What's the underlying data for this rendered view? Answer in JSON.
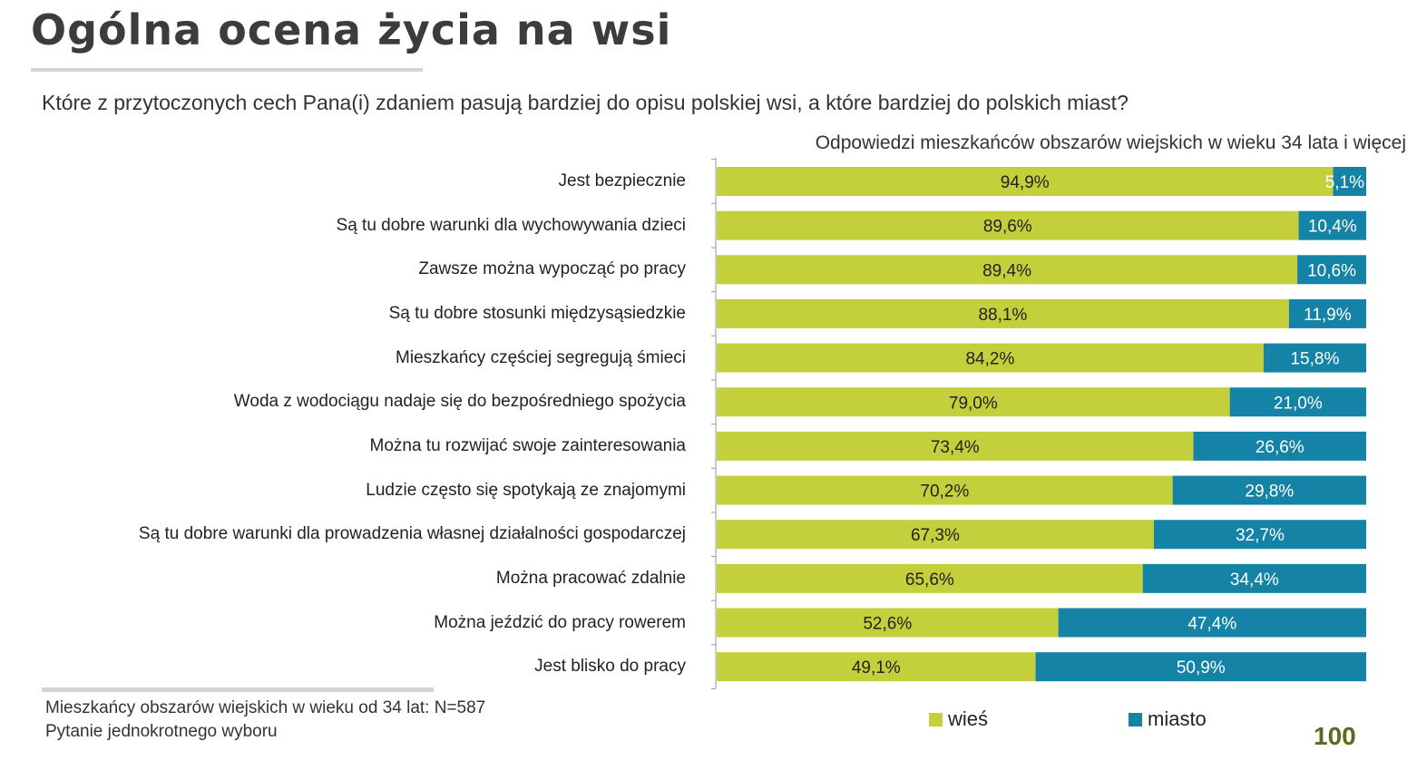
{
  "title": "Ogólna ocena życia na wsi",
  "question": "Które z przytoczonych cech Pana(i) zdaniem pasują bardziej do opisu polskiej wsi, a które bardziej do polskich miast?",
  "footer": {
    "note1": "Mieszkańcy obszarów wiejskich w wieku od  34 lat: N=587",
    "note2": "Pytanie jednokrotnego wyboru"
  },
  "page_number": "100",
  "chart_data": {
    "type": "bar",
    "orientation": "horizontal",
    "stacked": "100%",
    "title": "Odpowiedzi mieszkańców obszarów wiejskich w wieku 34 lata i więcej",
    "xlim": [
      0,
      100
    ],
    "legend_position": "bottom",
    "categories": [
      "Jest bezpiecznie",
      "Są tu dobre warunki dla wychowywania dzieci",
      "Zawsze można wypocząć po pracy",
      "Są tu dobre stosunki międzysąsiedzkie",
      "Mieszkańcy częściej segregują śmieci",
      "Woda z wodociągu nadaje się do bezpośredniego spożycia",
      "Można tu rozwijać swoje zainteresowania",
      "Ludzie często się spotykają ze znajomymi",
      "Są tu dobre warunki dla prowadzenia własnej działalności gospodarczej",
      "Można pracować zdalnie",
      "Można jeździć do pracy rowerem",
      "Jest blisko do pracy"
    ],
    "series": [
      {
        "name": "wieś",
        "color": "#c3cf3b",
        "label_color": "#222222",
        "values": [
          94.9,
          89.6,
          89.4,
          88.1,
          84.2,
          79.0,
          73.4,
          70.2,
          67.3,
          65.6,
          52.6,
          49.1
        ],
        "labels": [
          "94,9%",
          "89,6%",
          "89,4%",
          "88,1%",
          "84,2%",
          "79,0%",
          "73,4%",
          "70,2%",
          "67,3%",
          "65,6%",
          "52,6%",
          "49,1%"
        ]
      },
      {
        "name": "miasto",
        "color": "#1483a6",
        "label_color": "#ffffff",
        "values": [
          5.1,
          10.4,
          10.6,
          11.9,
          15.8,
          21.0,
          26.6,
          29.8,
          32.7,
          34.4,
          47.4,
          50.9
        ],
        "labels": [
          "5,1%",
          "10,4%",
          "10,6%",
          "11,9%",
          "15,8%",
          "21,0%",
          "26,6%",
          "29,8%",
          "32,7%",
          "34,4%",
          "47,4%",
          "50,9%"
        ]
      }
    ]
  }
}
